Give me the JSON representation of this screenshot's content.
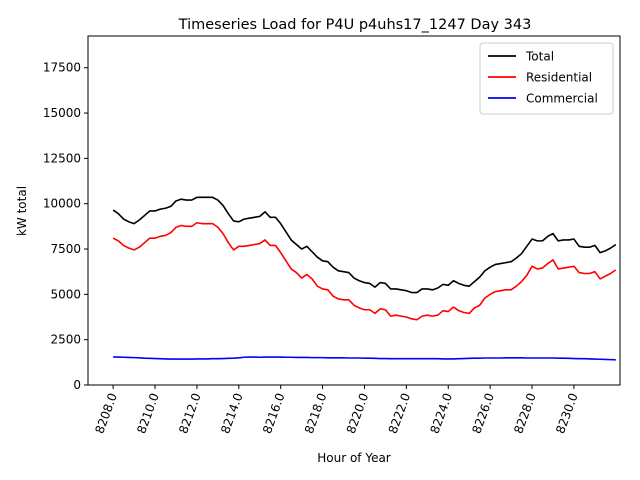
{
  "chart_data": {
    "type": "line",
    "title": "Timeseries Load for P4U p4uhs17_1247  Day 343",
    "xlabel": "Hour of Year",
    "ylabel": "kW total",
    "xlim": [
      8206.8,
      8232.2
    ],
    "ylim": [
      0,
      19250
    ],
    "x_ticks": [
      8208,
      8210,
      8212,
      8214,
      8216,
      8218,
      8220,
      8222,
      8224,
      8226,
      8228,
      8230
    ],
    "x_tick_labels": [
      "8208.0",
      "8210.0",
      "8212.0",
      "8214.0",
      "8216.0",
      "8218.0",
      "8220.0",
      "8222.0",
      "8224.0",
      "8226.0",
      "8228.0",
      "8230.0"
    ],
    "y_ticks": [
      0,
      2500,
      5000,
      7500,
      10000,
      12500,
      15000,
      17500
    ],
    "y_tick_labels": [
      "0",
      "2500",
      "5000",
      "7500",
      "10000",
      "12500",
      "15000",
      "17500"
    ],
    "legend_position": "top-right",
    "x_start": 8208,
    "x_step": 0.25,
    "series": [
      {
        "name": "Total",
        "color": "#000000",
        "values": [
          9650,
          9450,
          9150,
          9000,
          8900,
          9100,
          9350,
          9600,
          9600,
          9700,
          9750,
          9850,
          10150,
          10250,
          10200,
          10200,
          10350,
          10350,
          10350,
          10350,
          10200,
          9900,
          9450,
          9050,
          9000,
          9150,
          9200,
          9250,
          9300,
          9550,
          9250,
          9250,
          8900,
          8450,
          8000,
          7750,
          7500,
          7650,
          7350,
          7050,
          6850,
          6800,
          6500,
          6300,
          6250,
          6200,
          5900,
          5750,
          5650,
          5600,
          5400,
          5650,
          5600,
          5300,
          5300,
          5250,
          5200,
          5100,
          5100,
          5300,
          5300,
          5250,
          5350,
          5550,
          5500,
          5750,
          5600,
          5500,
          5450,
          5700,
          5950,
          6300,
          6500,
          6650,
          6700,
          6750,
          6800,
          7000,
          7250,
          7650,
          8050,
          7950,
          7950,
          8200,
          8350,
          7950,
          8000,
          8000,
          8050,
          7650,
          7600,
          7600,
          7700,
          7300,
          7400,
          7550,
          7750
        ]
      },
      {
        "name": "Residential",
        "color": "#ff0000",
        "values": [
          8100,
          7950,
          7700,
          7550,
          7450,
          7600,
          7850,
          8100,
          8100,
          8200,
          8250,
          8400,
          8700,
          8800,
          8750,
          8750,
          8950,
          8900,
          8900,
          8900,
          8700,
          8350,
          7850,
          7450,
          7650,
          7650,
          7700,
          7750,
          7800,
          8000,
          7700,
          7700,
          7300,
          6850,
          6400,
          6200,
          5900,
          6100,
          5850,
          5450,
          5300,
          5250,
          4900,
          4750,
          4700,
          4700,
          4400,
          4250,
          4150,
          4150,
          3950,
          4200,
          4150,
          3800,
          3850,
          3800,
          3750,
          3650,
          3600,
          3800,
          3850,
          3800,
          3850,
          4100,
          4050,
          4300,
          4100,
          4000,
          3950,
          4250,
          4400,
          4800,
          5000,
          5150,
          5200,
          5250,
          5250,
          5450,
          5700,
          6050,
          6550,
          6400,
          6450,
          6700,
          6900,
          6400,
          6450,
          6500,
          6550,
          6200,
          6150,
          6150,
          6250,
          5850,
          6000,
          6150,
          6350
        ]
      },
      {
        "name": "Commercial",
        "color": "#0000ff",
        "values": [
          1550,
          1540,
          1530,
          1520,
          1510,
          1500,
          1480,
          1470,
          1460,
          1450,
          1440,
          1430,
          1430,
          1430,
          1430,
          1430,
          1440,
          1440,
          1440,
          1450,
          1450,
          1460,
          1470,
          1480,
          1500,
          1530,
          1540,
          1540,
          1530,
          1540,
          1540,
          1540,
          1540,
          1530,
          1530,
          1520,
          1520,
          1520,
          1510,
          1510,
          1510,
          1500,
          1500,
          1500,
          1500,
          1490,
          1490,
          1490,
          1480,
          1480,
          1470,
          1460,
          1460,
          1450,
          1450,
          1450,
          1450,
          1450,
          1450,
          1450,
          1450,
          1450,
          1450,
          1440,
          1440,
          1440,
          1450,
          1460,
          1470,
          1480,
          1480,
          1490,
          1490,
          1490,
          1490,
          1500,
          1500,
          1500,
          1500,
          1490,
          1490,
          1490,
          1490,
          1490,
          1490,
          1480,
          1480,
          1470,
          1460,
          1450,
          1450,
          1440,
          1430,
          1420,
          1410,
          1400,
          1390
        ]
      }
    ]
  }
}
